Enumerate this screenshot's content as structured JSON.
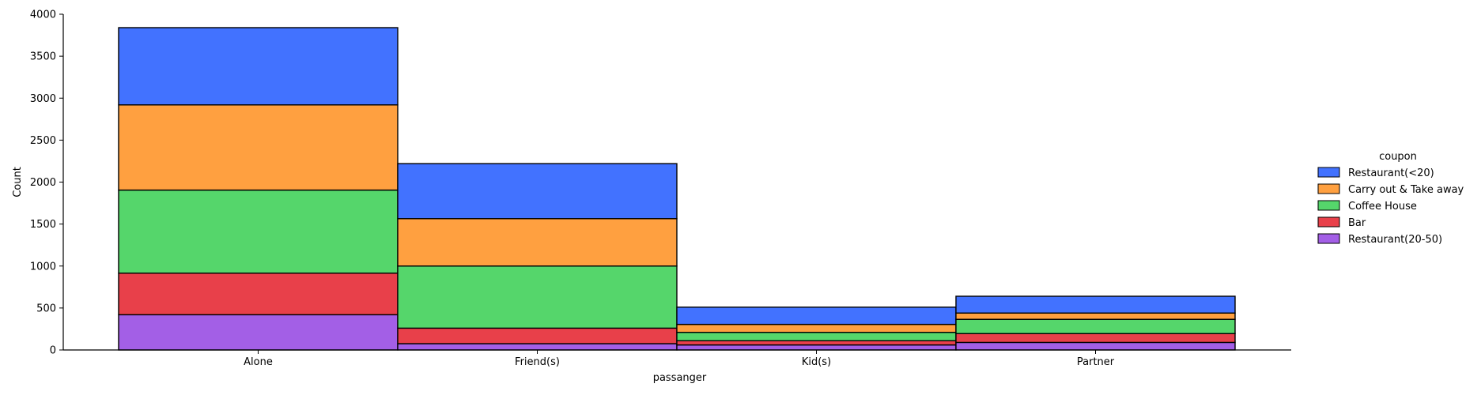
{
  "chart_data": {
    "type": "bar",
    "stacked": true,
    "xlabel": "passanger",
    "ylabel": "Count",
    "ylim": [
      0,
      4000
    ],
    "yticks": [
      0,
      500,
      1000,
      1500,
      2000,
      2500,
      3000,
      3500,
      4000
    ],
    "categories": [
      "Alone",
      "Friend(s)",
      "Kid(s)",
      "Partner"
    ],
    "legend_title": "coupon",
    "legend_position": "right",
    "grid": false,
    "series": [
      {
        "name": "Restaurant(20-50)",
        "color": "#a35fe6",
        "values": [
          420,
          75,
          60,
          90
        ]
      },
      {
        "name": "Bar",
        "color": "#e8404a",
        "values": [
          495,
          185,
          50,
          105
        ]
      },
      {
        "name": "Coffee House",
        "color": "#55d66b",
        "values": [
          990,
          740,
          100,
          170
        ]
      },
      {
        "name": "Carry out & Take away",
        "color": "#ffa040",
        "values": [
          1015,
          565,
          95,
          75
        ]
      },
      {
        "name": "Restaurant(<20)",
        "color": "#4272ff",
        "values": [
          920,
          655,
          205,
          200
        ]
      }
    ],
    "legend_order": [
      "Restaurant(<20)",
      "Carry out & Take away",
      "Coffee House",
      "Bar",
      "Restaurant(20-50)"
    ]
  }
}
